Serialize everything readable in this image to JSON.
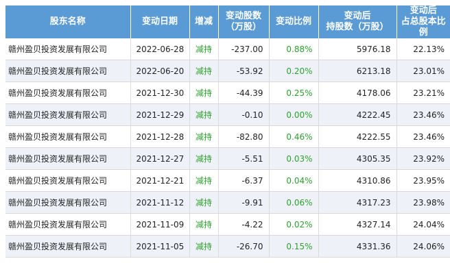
{
  "table": {
    "headers": [
      {
        "lines": [
          "股东名称"
        ]
      },
      {
        "lines": [
          "变动日期"
        ]
      },
      {
        "lines": [
          "增减"
        ]
      },
      {
        "lines": [
          "变动股数",
          "（万股）"
        ]
      },
      {
        "lines": [
          "变动比例"
        ]
      },
      {
        "lines": [
          "变动后",
          "持股数（万股）"
        ]
      },
      {
        "lines": [
          "变动后",
          "占总股本比例"
        ]
      }
    ],
    "rows": [
      {
        "name": "赣州盈贝投资发展有限公司",
        "date": "2022-06-28",
        "dir": "减持",
        "change": "-237.00",
        "ratio": "0.88%",
        "after": "5976.18",
        "pct": "22.13%"
      },
      {
        "name": "赣州盈贝投资发展有限公司",
        "date": "2022-06-20",
        "dir": "减持",
        "change": "-53.92",
        "ratio": "0.20%",
        "after": "6213.18",
        "pct": "23.01%"
      },
      {
        "name": "赣州盈贝投资发展有限公司",
        "date": "2021-12-30",
        "dir": "减持",
        "change": "-44.39",
        "ratio": "0.25%",
        "after": "4178.06",
        "pct": "23.21%"
      },
      {
        "name": "赣州盈贝投资发展有限公司",
        "date": "2021-12-29",
        "dir": "减持",
        "change": "-0.10",
        "ratio": "0.00%",
        "after": "4222.45",
        "pct": "23.46%"
      },
      {
        "name": "赣州盈贝投资发展有限公司",
        "date": "2021-12-28",
        "dir": "减持",
        "change": "-82.80",
        "ratio": "0.46%",
        "after": "4222.55",
        "pct": "23.46%"
      },
      {
        "name": "赣州盈贝投资发展有限公司",
        "date": "2021-12-27",
        "dir": "减持",
        "change": "-5.51",
        "ratio": "0.03%",
        "after": "4305.35",
        "pct": "23.92%"
      },
      {
        "name": "赣州盈贝投资发展有限公司",
        "date": "2021-12-21",
        "dir": "减持",
        "change": "-6.37",
        "ratio": "0.04%",
        "after": "4310.86",
        "pct": "23.95%"
      },
      {
        "name": "赣州盈贝投资发展有限公司",
        "date": "2021-11-12",
        "dir": "减持",
        "change": "-9.91",
        "ratio": "0.06%",
        "after": "4317.23",
        "pct": "23.98%"
      },
      {
        "name": "赣州盈贝投资发展有限公司",
        "date": "2021-11-09",
        "dir": "减持",
        "change": "-4.22",
        "ratio": "0.02%",
        "after": "4327.14",
        "pct": "24.04%"
      },
      {
        "name": "赣州盈贝投资发展有限公司",
        "date": "2021-11-05",
        "dir": "减持",
        "change": "-26.70",
        "ratio": "0.15%",
        "after": "4331.36",
        "pct": "24.06%"
      }
    ]
  },
  "colors": {
    "header_bg": "#5b9bd5",
    "decrease_text": "#2ca02c",
    "row_alt_bg": "#eef2f8"
  }
}
